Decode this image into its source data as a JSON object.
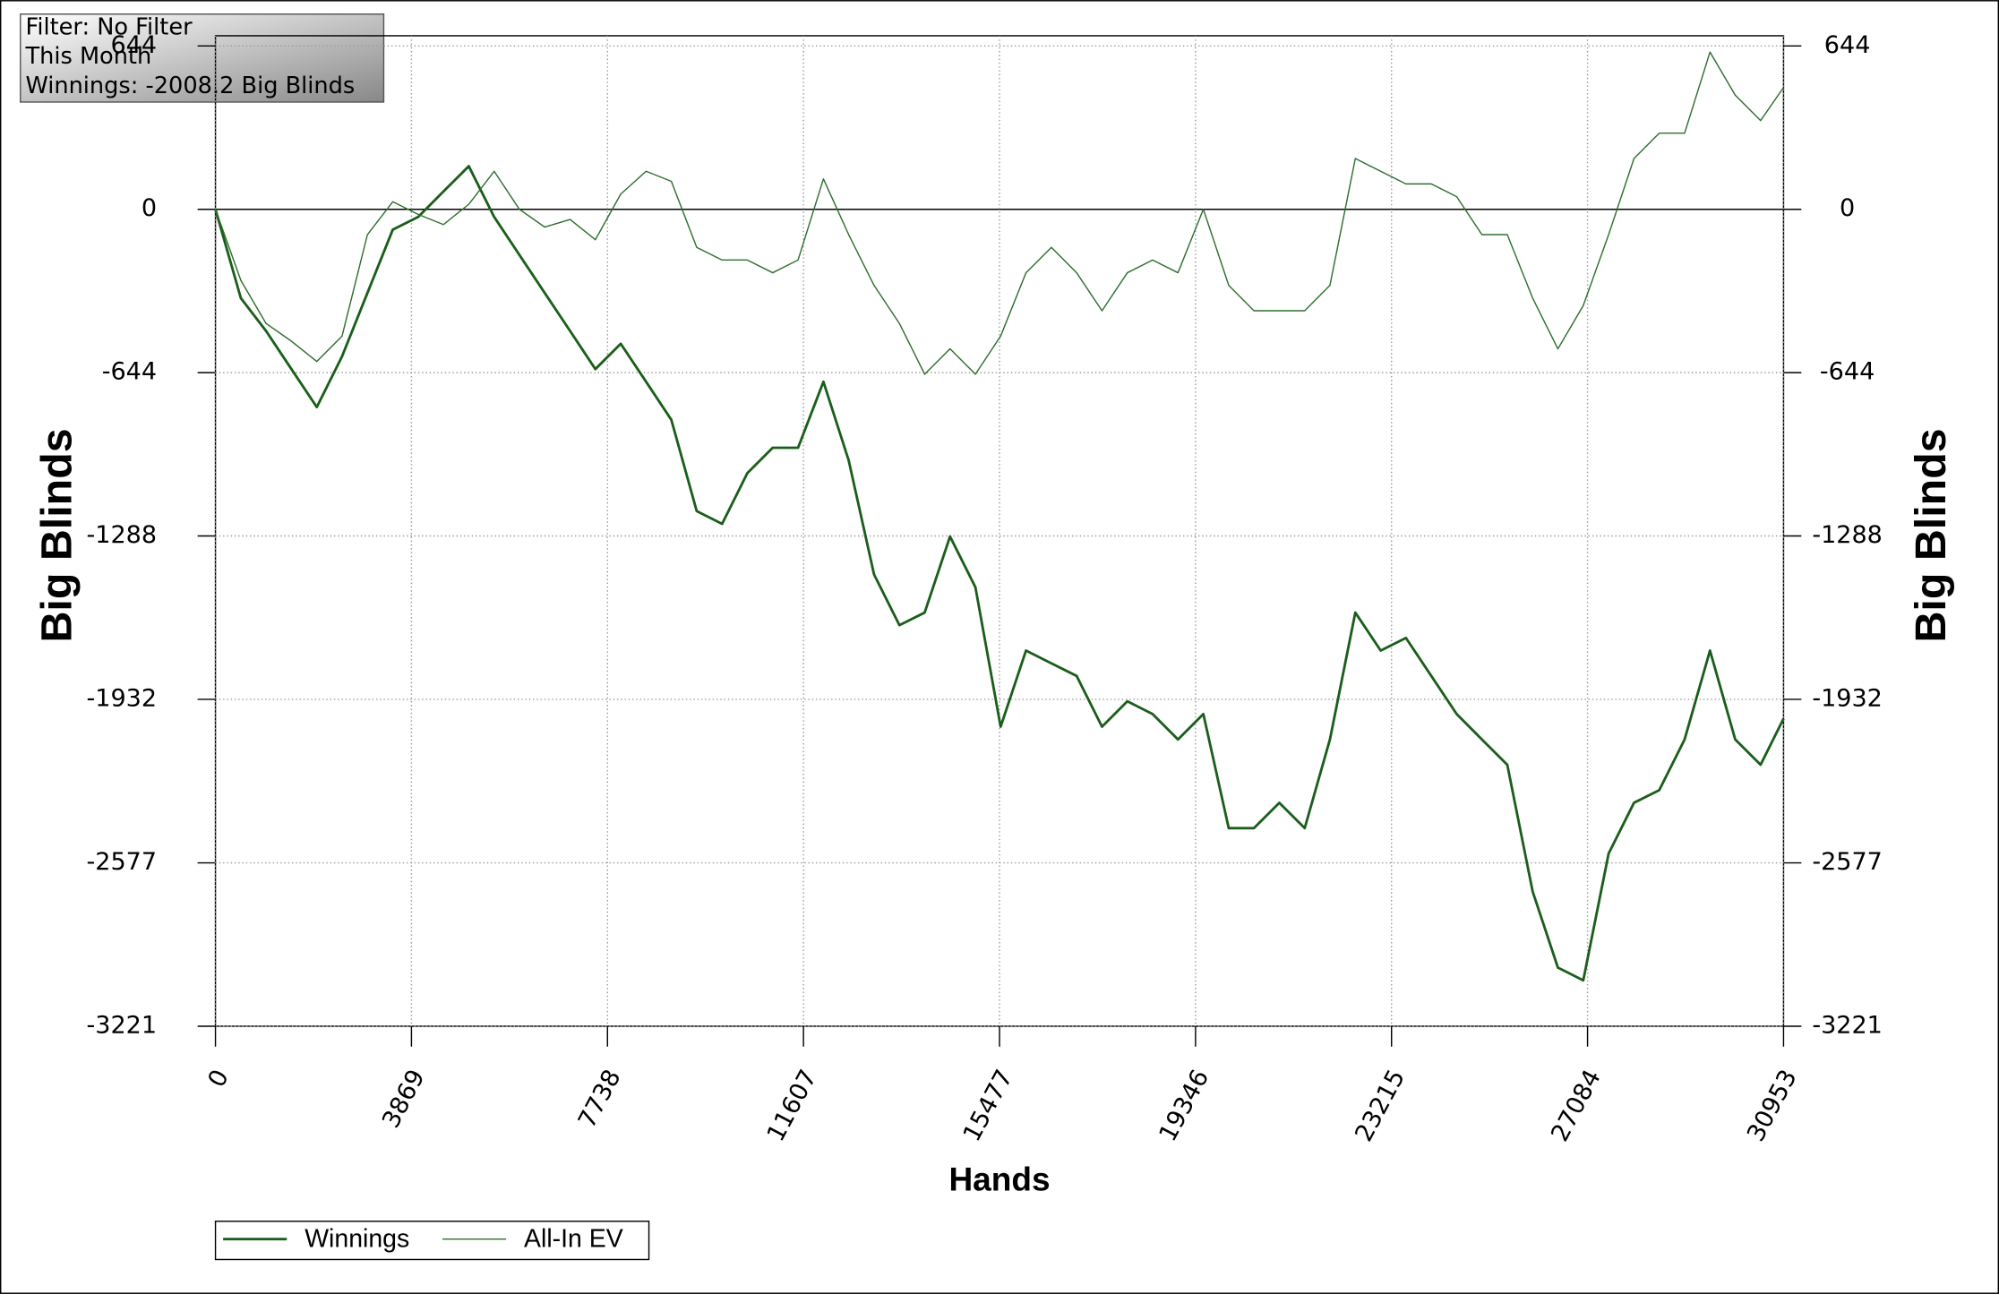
{
  "chart_data": {
    "type": "line",
    "info": [
      "Filter: No Filter",
      "This Month",
      "Winnings: -2008.2 Big Blinds"
    ],
    "xlabel": "Hands",
    "ylabel": "Big Blinds",
    "x": [
      0,
      500,
      1000,
      1500,
      2000,
      2500,
      3000,
      3500,
      4000,
      4500,
      5000,
      5500,
      6000,
      6500,
      7000,
      7500,
      8000,
      8500,
      9000,
      9500,
      10000,
      10500,
      11000,
      11500,
      12000,
      12500,
      13000,
      13500,
      14000,
      14500,
      15000,
      15500,
      16000,
      16500,
      17000,
      17500,
      18000,
      18500,
      19000,
      19500,
      20000,
      20500,
      21000,
      21500,
      22000,
      22500,
      23000,
      23500,
      24000,
      24500,
      25000,
      25500,
      26000,
      26500,
      27000,
      27500,
      28000,
      28500,
      29000,
      29500,
      30000,
      30500,
      30953
    ],
    "series": [
      {
        "name": "Winnings",
        "color": "#1b5e1b",
        "width": 2,
        "values": [
          0,
          -350,
          -480,
          -630,
          -780,
          -580,
          -330,
          -80,
          -30,
          70,
          170,
          -30,
          -180,
          -330,
          -480,
          -630,
          -530,
          -680,
          -830,
          -1190,
          -1240,
          -1040,
          -940,
          -940,
          -680,
          -990,
          -1440,
          -1640,
          -1590,
          -1290,
          -1490,
          -2040,
          -1740,
          -1790,
          -1840,
          -2040,
          -1940,
          -1990,
          -2090,
          -1990,
          -2440,
          -2440,
          -2340,
          -2440,
          -2090,
          -1590,
          -1740,
          -1690,
          -1840,
          -1990,
          -2090,
          -2190,
          -2690,
          -2990,
          -3040,
          -2540,
          -2340,
          -2290,
          -2090,
          -1740,
          -2090,
          -2190,
          -2008
        ]
      },
      {
        "name": "All-In EV",
        "color": "#2e6e2e",
        "width": 1,
        "values": [
          0,
          -280,
          -450,
          -520,
          -600,
          -500,
          -100,
          30,
          -20,
          -60,
          20,
          150,
          0,
          -70,
          -40,
          -120,
          60,
          150,
          110,
          -150,
          -200,
          -200,
          -250,
          -200,
          120,
          -100,
          -300,
          -450,
          -650,
          -550,
          -650,
          -500,
          -250,
          -150,
          -250,
          -400,
          -250,
          -200,
          -250,
          0,
          -300,
          -400,
          -400,
          -400,
          -300,
          200,
          150,
          100,
          100,
          50,
          -100,
          -100,
          -350,
          -550,
          -380,
          -100,
          200,
          300,
          300,
          620,
          450,
          350,
          480
        ]
      }
    ],
    "xlim": [
      0,
      30953
    ],
    "xticks": [
      0,
      3869,
      7738,
      11607,
      15477,
      19346,
      23215,
      27084,
      30953
    ],
    "ylim": [
      -3221,
      644
    ],
    "yticks": [
      644,
      0,
      -644,
      -1288,
      -1932,
      -2577,
      -3221
    ],
    "grid": true
  }
}
